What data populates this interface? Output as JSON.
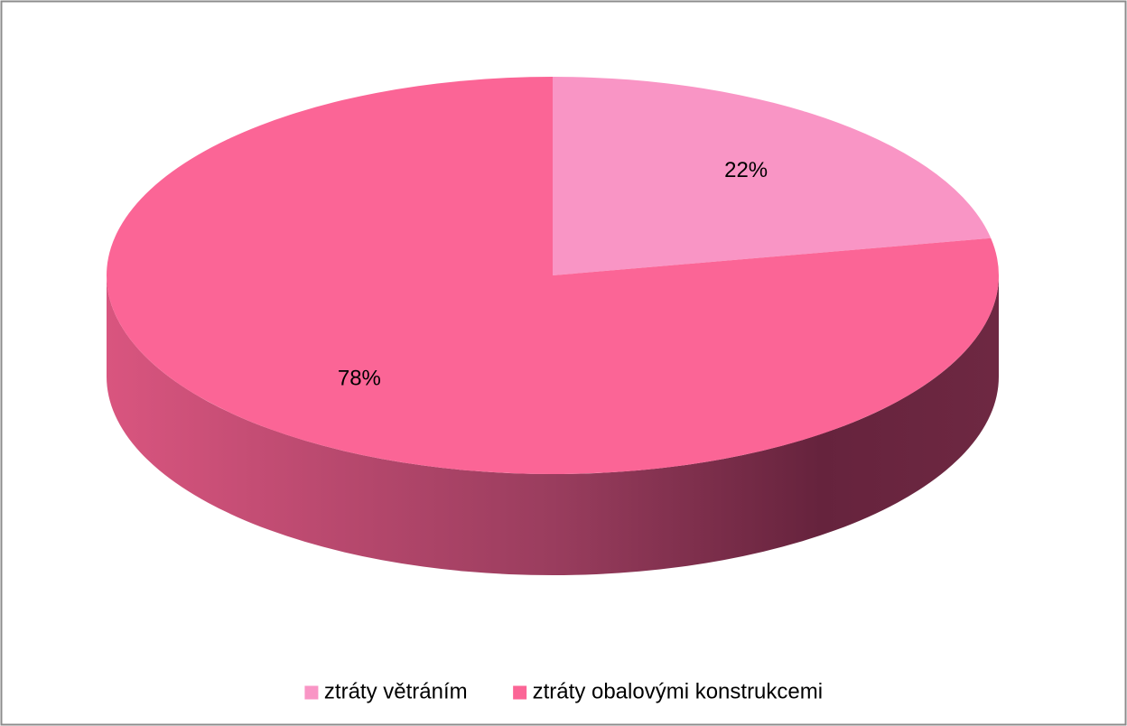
{
  "chart_data": {
    "type": "pie3d",
    "categories": [
      "ztráty větráním",
      "ztráty obalovými konstrukcemi"
    ],
    "values": [
      22,
      78
    ],
    "value_labels": [
      "22%",
      "78%"
    ],
    "colors": [
      "#f995c5",
      "#fb6596"
    ],
    "legend": "bottom"
  }
}
